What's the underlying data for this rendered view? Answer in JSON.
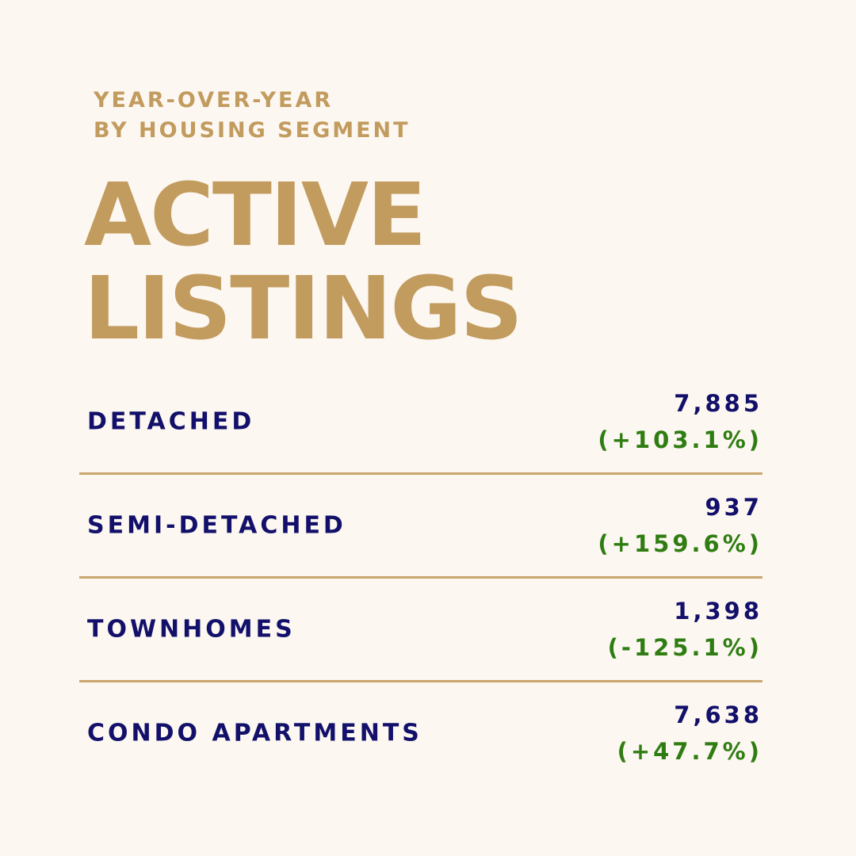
{
  "header": {
    "eyebrow_line1": "YEAR-OVER-YEAR",
    "eyebrow_line2": "BY HOUSING SEGMENT",
    "title_line1": "ACTIVE",
    "title_line2": "LISTINGS"
  },
  "segments": [
    {
      "label": "DETACHED",
      "count": "7,885",
      "change": "(+103.1%)"
    },
    {
      "label": "SEMI-DETACHED",
      "count": "937",
      "change": "(+159.6%)"
    },
    {
      "label": "TOWNHOMES",
      "count": "1,398",
      "change": "(-125.1%)"
    },
    {
      "label": "CONDO APARTMENTS",
      "count": "7,638",
      "change": "(+47.7%)"
    }
  ],
  "colors": {
    "background": "#fcf7f0",
    "gold": "#c29b5e",
    "navy": "#13106b",
    "green": "#2f7d12",
    "divider": "#c9a66f"
  }
}
